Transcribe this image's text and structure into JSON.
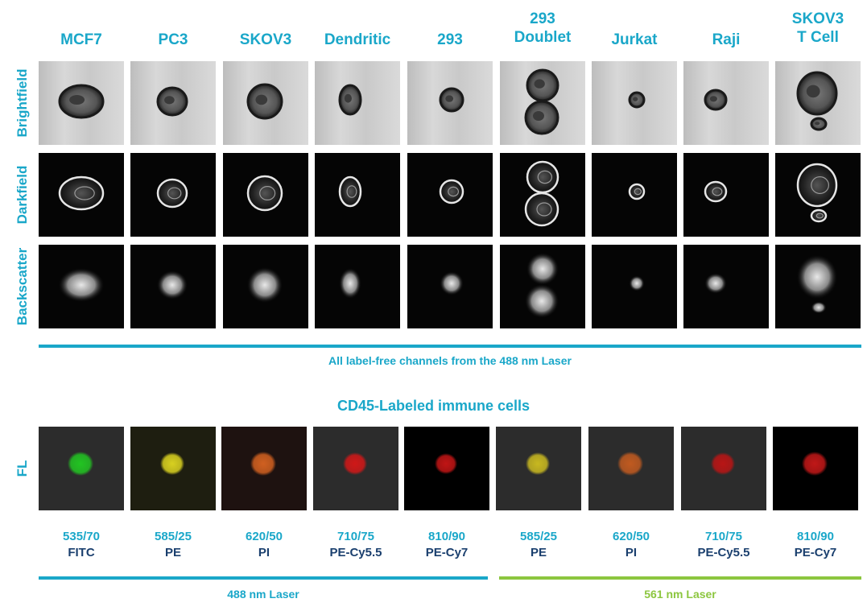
{
  "columns": [
    "MCF7",
    "PC3",
    "SKOV3",
    "Dendritic",
    "293",
    "293\nDoublet",
    "Jurkat",
    "Raji",
    "SKOV3\nT Cell"
  ],
  "rows": [
    "Brightfield",
    "Darkfield",
    "Backscatter"
  ],
  "label_free_caption": "All label-free channels from the 488 nm Laser",
  "fl_section_title": "CD45-Labeled immune cells",
  "fl_row_label": "FL",
  "fl_channels": [
    {
      "filter": "535/70",
      "dye": "FITC",
      "color": "#22c422"
    },
    {
      "filter": "585/25",
      "dye": "PE",
      "color": "#d8d020"
    },
    {
      "filter": "620/50",
      "dye": "PI",
      "color": "#d06020"
    },
    {
      "filter": "710/75",
      "dye": "PE-Cy5.5",
      "color": "#d01818"
    },
    {
      "filter": "810/90",
      "dye": "PE-Cy7",
      "color": "#c01515"
    },
    {
      "filter": "585/25",
      "dye": "PE",
      "color": "#c8b820"
    },
    {
      "filter": "620/50",
      "dye": "PI",
      "color": "#c05a20"
    },
    {
      "filter": "710/75",
      "dye": "PE-Cy5.5",
      "color": "#b81515"
    },
    {
      "filter": "810/90",
      "dye": "PE-Cy7",
      "color": "#c01818"
    }
  ],
  "laser_488_label": "488 nm Laser",
  "laser_561_label": "561 nm Laser",
  "colors": {
    "accent": "#1aa7c9",
    "dye_text": "#1a3f6e",
    "laser_561": "#8cc63f"
  }
}
